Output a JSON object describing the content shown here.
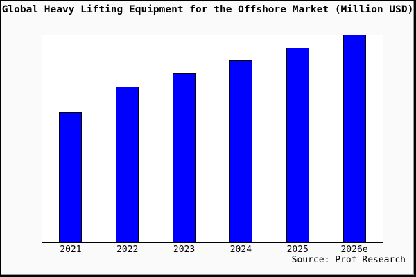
{
  "chart_data": {
    "type": "bar",
    "title": "Global Heavy Lifting Equipment for the Offshore Market (Million USD)",
    "categories": [
      "2021",
      "2022",
      "2023",
      "2024",
      "2025",
      "2026e"
    ],
    "values": [
      188,
      225,
      244,
      263,
      281,
      300
    ],
    "note": "no y-axis, tick values or data labels are visible; values are relative estimates read from bar pixel heights",
    "xlabel": "",
    "ylabel": "",
    "ylim": [
      0,
      300
    ],
    "grid": false,
    "legend": false,
    "bar_color": "#0000FF",
    "bar_border_color": "#000000"
  },
  "source": {
    "label": "Source: Prof Research"
  },
  "colors": {
    "figure_bg": "#FAFAFA",
    "plot_bg": "#FFFFFF",
    "frame_border": "#000000",
    "text": "#000000"
  }
}
